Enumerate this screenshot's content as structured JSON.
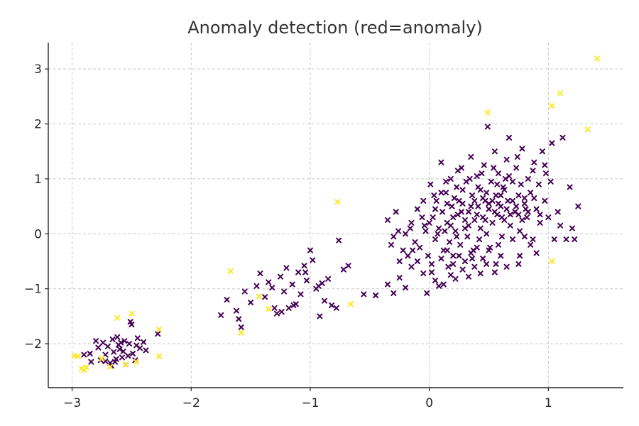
{
  "chart_data": {
    "type": "scatter",
    "title": "Anomaly detection (red=anomaly)",
    "xlabel": "",
    "ylabel": "",
    "xlim": [
      -3.2,
      1.63
    ],
    "ylim": [
      -2.8,
      3.48
    ],
    "xticks": [
      -3,
      -2,
      -1,
      0,
      1
    ],
    "yticks": [
      -2,
      -1,
      0,
      1,
      2,
      3
    ],
    "xtick_labels": [
      "−3",
      "−2",
      "−1",
      "0",
      "1"
    ],
    "ytick_labels": [
      "−2",
      "−1",
      "0",
      "1",
      "2",
      "3"
    ],
    "grid": true,
    "marker": "x",
    "colors": {
      "normal": "#440154",
      "anomaly": "#fde725"
    },
    "series": [
      {
        "points": [
          [
            -2.8,
            -1.95
          ],
          [
            -2.76,
            -2.3
          ],
          [
            -2.74,
            -1.98
          ],
          [
            -2.72,
            -2.2
          ],
          [
            -2.7,
            -2.05
          ],
          [
            -2.68,
            -2.35
          ],
          [
            -2.66,
            -1.92
          ],
          [
            -2.65,
            -2.15
          ],
          [
            -2.63,
            -2.28
          ],
          [
            -2.62,
            -1.88
          ],
          [
            -2.6,
            -2.1
          ],
          [
            -2.58,
            -2.25
          ],
          [
            -2.56,
            -1.95
          ],
          [
            -2.55,
            -2.38
          ],
          [
            -2.52,
            -2.0
          ],
          [
            -2.5,
            -1.65
          ],
          [
            -2.49,
            -2.18
          ],
          [
            -2.47,
            -2.3
          ],
          [
            -2.45,
            -1.9
          ],
          [
            -2.43,
            -2.08
          ],
          [
            -2.4,
            -1.97
          ],
          [
            -2.38,
            -2.12
          ],
          [
            -2.72,
            -2.32
          ],
          [
            -2.67,
            -2.4
          ],
          [
            -2.61,
            -2.02
          ],
          [
            -2.57,
            -2.14
          ],
          [
            -2.53,
            -2.22
          ],
          [
            -2.46,
            -2.03
          ],
          [
            -2.9,
            -2.2
          ],
          [
            -2.84,
            -2.33
          ],
          [
            -2.78,
            -2.07
          ],
          [
            -2.28,
            -1.82
          ],
          [
            -2.85,
            -2.18
          ],
          [
            -2.64,
            -2.33
          ],
          [
            -2.59,
            -1.98
          ],
          [
            -2.51,
            -1.6
          ],
          [
            -1.75,
            -1.48
          ],
          [
            -1.7,
            -1.2
          ],
          [
            -1.62,
            -1.4
          ],
          [
            -1.58,
            -1.7
          ],
          [
            -1.55,
            -1.05
          ],
          [
            -1.5,
            -1.25
          ],
          [
            -1.45,
            -0.95
          ],
          [
            -1.42,
            -0.72
          ],
          [
            -1.38,
            -1.15
          ],
          [
            -1.35,
            -0.88
          ],
          [
            -1.32,
            -0.98
          ],
          [
            -1.28,
            -1.45
          ],
          [
            -1.25,
            -0.78
          ],
          [
            -1.22,
            -1.05
          ],
          [
            -1.2,
            -0.62
          ],
          [
            -1.18,
            -1.35
          ],
          [
            -1.15,
            -0.92
          ],
          [
            -1.12,
            -1.28
          ],
          [
            -1.1,
            -0.7
          ],
          [
            -1.08,
            -1.1
          ],
          [
            -1.05,
            -0.58
          ],
          [
            -1.03,
            -0.85
          ],
          [
            -1.0,
            -0.3
          ],
          [
            -0.98,
            -0.48
          ],
          [
            -0.95,
            -1.0
          ],
          [
            -0.92,
            -1.5
          ],
          [
            -0.9,
            -0.9
          ],
          [
            -0.88,
            -1.22
          ],
          [
            -0.85,
            -0.82
          ],
          [
            -0.82,
            -1.3
          ],
          [
            -0.78,
            -1.35
          ],
          [
            -0.76,
            -0.12
          ],
          [
            -0.72,
            -0.65
          ],
          [
            -0.68,
            -0.58
          ],
          [
            -1.24,
            -1.42
          ],
          [
            -1.14,
            -1.3
          ],
          [
            -1.04,
            -0.7
          ],
          [
            -0.93,
            -0.95
          ],
          [
            -1.3,
            -1.35
          ],
          [
            -1.6,
            -1.55
          ],
          [
            -0.55,
            -1.1
          ],
          [
            -0.45,
            -1.12
          ],
          [
            -0.35,
            -0.92
          ],
          [
            -0.3,
            -1.08
          ],
          [
            -0.25,
            -0.8
          ],
          [
            -0.2,
            -0.98
          ],
          [
            -0.15,
            -0.6
          ],
          [
            -0.1,
            -0.5
          ],
          [
            -0.05,
            -0.72
          ],
          [
            -0.02,
            -1.08
          ],
          [
            0.02,
            -0.7
          ],
          [
            0.05,
            -0.85
          ],
          [
            0.08,
            -0.95
          ],
          [
            0.1,
            -0.45
          ],
          [
            0.12,
            -0.92
          ],
          [
            0.15,
            -0.3
          ],
          [
            0.18,
            -0.75
          ],
          [
            0.2,
            -0.55
          ],
          [
            0.22,
            -0.82
          ],
          [
            0.25,
            -0.4
          ],
          [
            0.28,
            -0.65
          ],
          [
            0.3,
            -0.5
          ],
          [
            0.33,
            -0.78
          ],
          [
            0.35,
            -0.35
          ],
          [
            0.38,
            -0.6
          ],
          [
            0.4,
            -0.25
          ],
          [
            0.43,
            -0.72
          ],
          [
            0.45,
            -0.45
          ],
          [
            0.48,
            -0.55
          ],
          [
            0.5,
            -0.3
          ],
          [
            0.55,
            -0.7
          ],
          [
            0.58,
            -0.2
          ],
          [
            0.6,
            -0.4
          ],
          [
            0.65,
            -0.6
          ],
          [
            0.7,
            -0.1
          ],
          [
            0.75,
            -0.55
          ],
          [
            0.8,
            -0.05
          ],
          [
            0.85,
            -0.2
          ],
          [
            0.9,
            -0.35
          ],
          [
            -0.35,
            0.25
          ],
          [
            -0.32,
            -0.2
          ],
          [
            -0.3,
            -0.05
          ],
          [
            -0.28,
            0.4
          ],
          [
            -0.25,
            -0.5
          ],
          [
            -0.22,
            -0.3
          ],
          [
            -0.2,
            0.0
          ],
          [
            -0.18,
            -0.4
          ],
          [
            -0.15,
            0.2
          ],
          [
            -0.12,
            -0.15
          ],
          [
            -0.1,
            0.45
          ],
          [
            -0.08,
            -0.25
          ],
          [
            -0.05,
            0.6
          ],
          [
            -0.03,
            0.05
          ],
          [
            -0.01,
            -0.4
          ],
          [
            0.01,
            0.9
          ],
          [
            0.03,
            0.3
          ],
          [
            0.05,
            -0.1
          ],
          [
            0.06,
            0.6
          ],
          [
            0.08,
            0.1
          ],
          [
            0.1,
            1.3
          ],
          [
            0.11,
            0.4
          ],
          [
            0.12,
            -0.3
          ],
          [
            0.14,
            0.75
          ],
          [
            0.15,
            0.2
          ],
          [
            0.17,
            -0.15
          ],
          [
            0.18,
            1.0
          ],
          [
            0.19,
            0.5
          ],
          [
            0.2,
            -0.4
          ],
          [
            0.22,
            0.05
          ],
          [
            0.23,
            0.85
          ],
          [
            0.24,
            0.35
          ],
          [
            0.26,
            -0.2
          ],
          [
            0.27,
            1.2
          ],
          [
            0.28,
            0.55
          ],
          [
            0.3,
            0.1
          ],
          [
            0.31,
            0.95
          ],
          [
            0.32,
            -0.05
          ],
          [
            0.33,
            0.4
          ],
          [
            0.35,
            1.4
          ],
          [
            0.36,
            0.7
          ],
          [
            0.37,
            -0.3
          ],
          [
            0.38,
            0.25
          ],
          [
            0.4,
            1.05
          ],
          [
            0.41,
            0.5
          ],
          [
            0.42,
            -0.1
          ],
          [
            0.43,
            0.8
          ],
          [
            0.45,
            0.3
          ],
          [
            0.46,
            1.25
          ],
          [
            0.47,
            0.6
          ],
          [
            0.48,
            0.0
          ],
          [
            0.49,
            1.95
          ],
          [
            0.5,
            0.45
          ],
          [
            0.51,
            -0.25
          ],
          [
            0.52,
            0.95
          ],
          [
            0.53,
            0.2
          ],
          [
            0.55,
            1.5
          ],
          [
            0.56,
            0.7
          ],
          [
            0.57,
            0.35
          ],
          [
            0.58,
            1.1
          ],
          [
            0.6,
            0.5
          ],
          [
            0.61,
            -0.05
          ],
          [
            0.62,
            0.85
          ],
          [
            0.63,
            0.25
          ],
          [
            0.65,
            1.35
          ],
          [
            0.66,
            0.6
          ],
          [
            0.67,
            1.75
          ],
          [
            0.68,
            0.15
          ],
          [
            0.7,
            0.95
          ],
          [
            0.72,
            0.4
          ],
          [
            0.73,
            1.2
          ],
          [
            0.75,
            0.7
          ],
          [
            0.76,
            0.05
          ],
          [
            0.78,
            1.55
          ],
          [
            0.8,
            0.55
          ],
          [
            0.82,
            0.3
          ],
          [
            0.83,
            1.0
          ],
          [
            0.85,
            0.75
          ],
          [
            0.87,
            -0.1
          ],
          [
            0.88,
            1.3
          ],
          [
            0.9,
            0.45
          ],
          [
            0.92,
            0.9
          ],
          [
            0.93,
            0.2
          ],
          [
            0.95,
            1.5
          ],
          [
            0.97,
            0.6
          ],
          [
            0.98,
            1.1
          ],
          [
            1.0,
            0.3
          ],
          [
            1.02,
            0.95
          ],
          [
            1.03,
            1.65
          ],
          [
            1.05,
            -0.1
          ],
          [
            1.08,
            0.4
          ],
          [
            1.1,
            0.15
          ],
          [
            1.12,
            1.75
          ],
          [
            1.15,
            -0.1
          ],
          [
            1.18,
            0.85
          ],
          [
            1.2,
            0.1
          ],
          [
            1.22,
            -0.1
          ],
          [
            1.25,
            0.5
          ],
          [
            0.0,
            0.2
          ],
          [
            0.05,
            0.45
          ],
          [
            0.1,
            0.75
          ],
          [
            0.15,
            0.55
          ],
          [
            0.2,
            0.3
          ],
          [
            0.25,
            0.6
          ],
          [
            0.3,
            0.25
          ],
          [
            0.35,
            0.5
          ],
          [
            0.4,
            0.35
          ],
          [
            0.45,
            0.65
          ],
          [
            0.5,
            0.55
          ],
          [
            0.55,
            0.4
          ],
          [
            0.6,
            0.7
          ],
          [
            0.65,
            0.45
          ],
          [
            0.7,
            0.6
          ],
          [
            0.75,
            0.35
          ],
          [
            0.8,
            0.65
          ],
          [
            0.02,
            -0.55
          ],
          [
            0.18,
            0.15
          ],
          [
            0.28,
            0.8
          ],
          [
            0.38,
            0.6
          ],
          [
            0.48,
            0.75
          ],
          [
            0.58,
            0.55
          ],
          [
            0.68,
            0.35
          ],
          [
            0.78,
            0.25
          ],
          [
            0.88,
            0.65
          ],
          [
            0.13,
            0.05
          ],
          [
            0.23,
            -0.05
          ],
          [
            0.33,
            0.15
          ],
          [
            0.43,
            0.1
          ],
          [
            0.53,
            0.6
          ],
          [
            0.63,
            0.8
          ],
          [
            0.73,
            0.5
          ],
          [
            0.83,
            0.4
          ],
          [
            0.93,
            0.35
          ],
          [
            -0.06,
            0.3
          ],
          [
            -0.16,
            0.1
          ],
          [
            -0.26,
            0.05
          ],
          [
            0.07,
            0.0
          ],
          [
            0.27,
            0.4
          ],
          [
            0.47,
            0.25
          ],
          [
            0.57,
            0.9
          ],
          [
            0.67,
            1.05
          ],
          [
            0.77,
            0.9
          ],
          [
            0.87,
            1.15
          ],
          [
            0.97,
            1.25
          ],
          [
            0.16,
            -0.6
          ],
          [
            0.36,
            -0.45
          ],
          [
            0.56,
            -0.55
          ],
          [
            0.76,
            -0.4
          ],
          [
            0.21,
            0.65
          ],
          [
            0.41,
            0.85
          ],
          [
            0.61,
            0.3
          ],
          [
            0.81,
            0.45
          ],
          [
            0.44,
            1.1
          ],
          [
            0.54,
            1.2
          ],
          [
            0.64,
            1.0
          ],
          [
            0.74,
            1.4
          ],
          [
            0.34,
            1.0
          ],
          [
            0.24,
            1.15
          ],
          [
            0.14,
            0.95
          ],
          [
            0.04,
            0.7
          ],
          [
            -0.04,
            0.15
          ],
          [
            -0.14,
            -0.3
          ]
        ]
      },
      {
        "points": [
          [
            -2.98,
            -2.22
          ],
          [
            -2.95,
            -2.23
          ],
          [
            -2.92,
            -2.45
          ],
          [
            -2.9,
            -2.48
          ],
          [
            -2.88,
            -2.43
          ],
          [
            -2.75,
            -2.27
          ],
          [
            -2.68,
            -2.42
          ],
          [
            -2.62,
            -1.53
          ],
          [
            -2.55,
            -2.38
          ],
          [
            -2.5,
            -1.45
          ],
          [
            -2.46,
            -2.33
          ],
          [
            -2.27,
            -1.74
          ],
          [
            -2.27,
            -2.23
          ],
          [
            -1.67,
            -0.68
          ],
          [
            -1.58,
            -1.8
          ],
          [
            -1.35,
            -1.37
          ],
          [
            -1.43,
            -1.14
          ],
          [
            -0.77,
            0.58
          ],
          [
            -0.66,
            -1.28
          ],
          [
            0.49,
            2.21
          ],
          [
            1.03,
            2.33
          ],
          [
            1.1,
            2.56
          ],
          [
            1.33,
            1.9
          ],
          [
            1.41,
            3.19
          ],
          [
            1.03,
            -0.5
          ]
        ]
      }
    ]
  }
}
